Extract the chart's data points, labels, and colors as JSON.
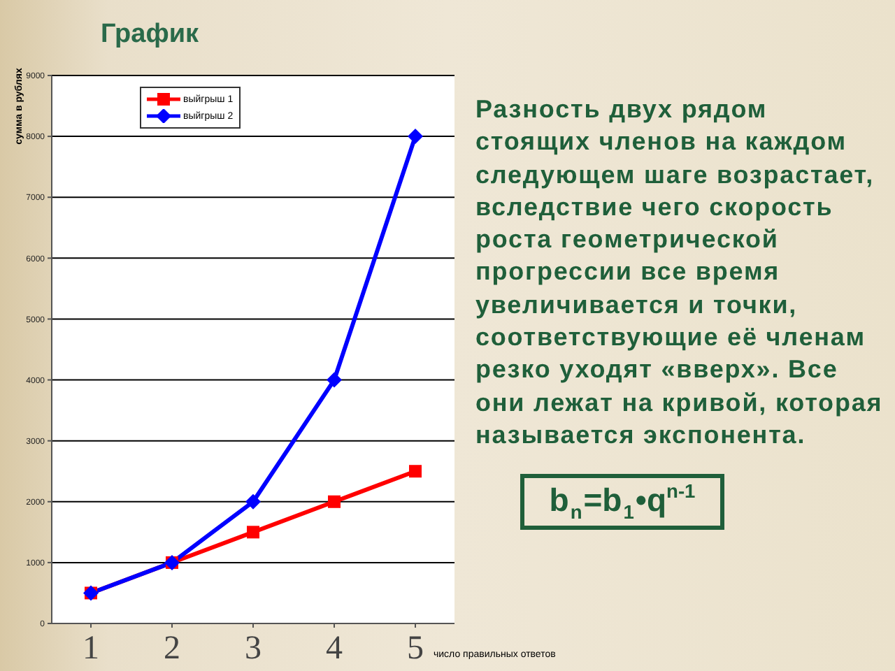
{
  "chart_data": {
    "type": "line",
    "title": "График",
    "xlabel": "число правильных ответов",
    "ylabel": "сумма в рублях",
    "categories": [
      "1",
      "2",
      "3",
      "4",
      "5"
    ],
    "series": [
      {
        "name": "выйгрыш 1",
        "color": "#ff0000",
        "marker": "square",
        "values": [
          500,
          1000,
          1500,
          2000,
          2500
        ]
      },
      {
        "name": "выйгрыш 2",
        "color": "#0000ff",
        "marker": "diamond",
        "values": [
          500,
          1000,
          2000,
          4000,
          8000
        ]
      }
    ],
    "ylim": [
      0,
      9000
    ],
    "yticks": [
      0,
      1000,
      2000,
      3000,
      4000,
      5000,
      6000,
      7000,
      8000,
      9000
    ],
    "grid": "y",
    "legend": "top left",
    "annotations": [
      "Разность двух рядом стоящих членов на каждом следующем шаге возрастает, вследствие чего скорость роста геометрической прогрессии все время увеличивается и точки, соответствующие её членам резко уходят «вверх». Все они лежат на кривой, которая называется экспонента.",
      "b$_{n}$=b$_{1}$•q$^{n-1}$"
    ]
  }
}
